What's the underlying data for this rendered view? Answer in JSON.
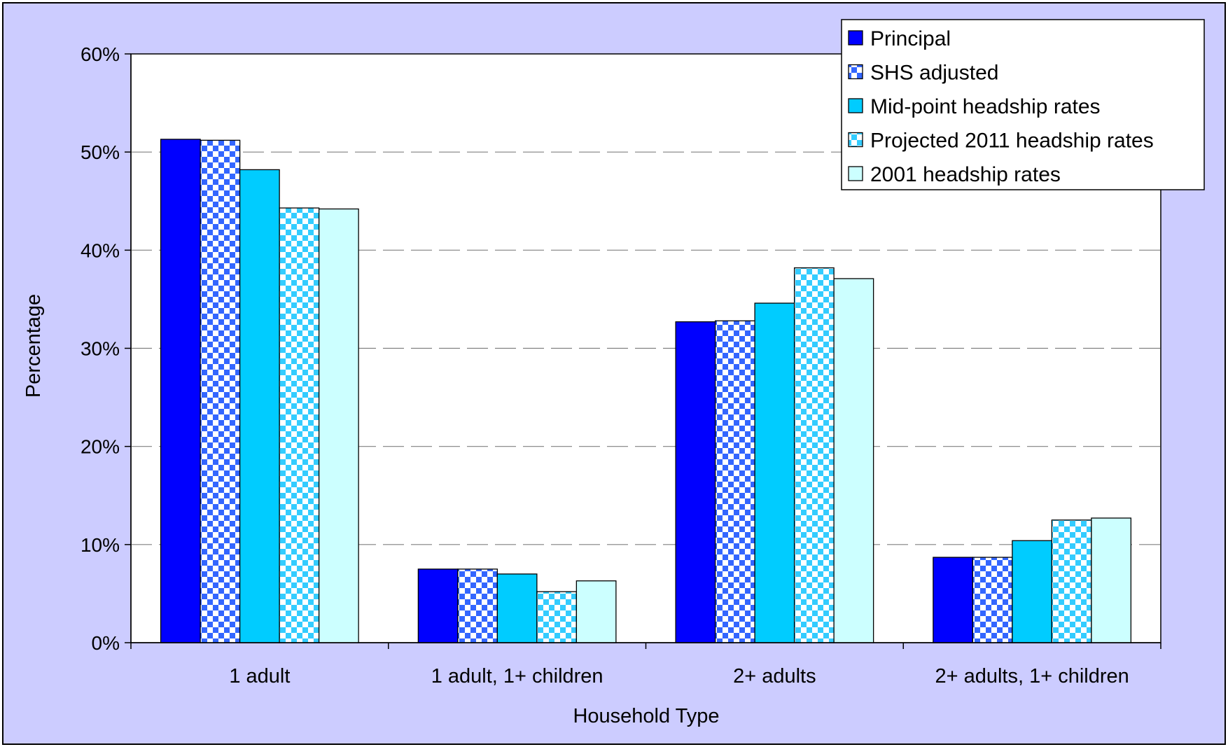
{
  "chart_data": {
    "type": "bar",
    "title": "",
    "xlabel": "Household Type",
    "ylabel": "Percentage",
    "ylim": [
      0,
      60
    ],
    "yticks": [
      "0%",
      "10%",
      "20%",
      "30%",
      "40%",
      "50%",
      "60%"
    ],
    "grid": "horizontal dashed",
    "legend_position": "top-right",
    "categories": [
      "1 adult",
      "1 adult, 1+ children",
      "2+ adults",
      "2+ adults, 1+ children"
    ],
    "series": [
      {
        "name": "Principal",
        "values": [
          51.3,
          7.5,
          32.7,
          8.7
        ],
        "color": "#0000FF",
        "pattern": "solid"
      },
      {
        "name": "SHS adjusted",
        "values": [
          51.2,
          7.5,
          32.8,
          8.7
        ],
        "color": "#3366FF",
        "pattern": "checker"
      },
      {
        "name": "Mid-point headship rates",
        "values": [
          48.2,
          7.0,
          34.6,
          10.4
        ],
        "color": "#00CCFF",
        "pattern": "solid"
      },
      {
        "name": "Projected 2011 headship rates",
        "values": [
          44.3,
          5.2,
          38.2,
          12.5
        ],
        "color": "#33CCFF",
        "pattern": "checker"
      },
      {
        "name": "2001 headship rates",
        "values": [
          44.2,
          6.3,
          37.1,
          12.7
        ],
        "color": "#CCFFFF",
        "pattern": "solid"
      }
    ],
    "colors": {
      "background": "#CCCCFF",
      "plot_area": "#FFFFFF",
      "gridline": "#808080"
    }
  }
}
